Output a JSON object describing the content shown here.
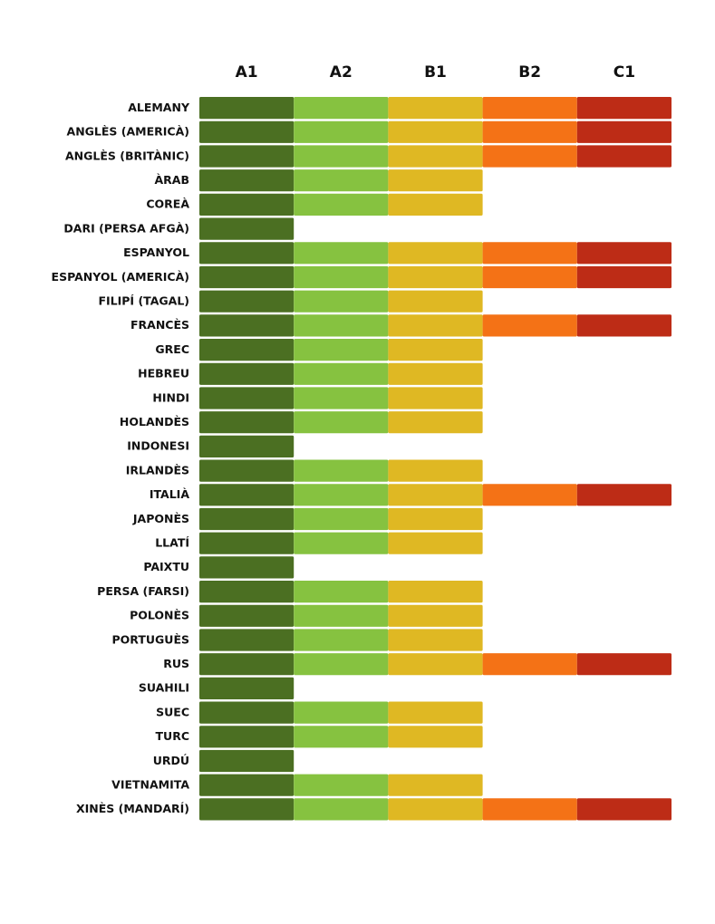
{
  "chart_data": {
    "type": "level-grid",
    "levels": [
      {
        "name": "A1",
        "color": "#4b6f22"
      },
      {
        "name": "A2",
        "color": "#86c240"
      },
      {
        "name": "B1",
        "color": "#dfb823"
      },
      {
        "name": "B2",
        "color": "#f47216"
      },
      {
        "name": "C1",
        "color": "#bd2c16"
      }
    ],
    "categories": [
      "ALEMANY",
      "ANGLÈS (AMERICÀ)",
      "ANGLÈS (BRITÀNIC)",
      "ÀRAB",
      "COREÀ",
      "DARI (PERSA AFGÀ)",
      "ESPANYOL",
      "ESPANYOL (AMERICÀ)",
      "FILIPÍ (TAGAL)",
      "FRANCÈS",
      "GREC",
      "HEBREU",
      "HINDI",
      "HOLANDÈS",
      "INDONESI",
      "IRLANDÈS",
      "ITALIÀ",
      "JAPONÈS",
      "LLATÍ",
      "PAIXTU",
      "PERSA (FARSI)",
      "POLONÈS",
      "PORTUGUÈS",
      "RUS",
      "SUAHILI",
      "SUEC",
      "TURC",
      "URDÚ",
      "VIETNAMITA",
      "XINÈS (MANDARÍ)"
    ],
    "values": [
      5,
      5,
      5,
      3,
      3,
      1,
      5,
      5,
      3,
      5,
      3,
      3,
      3,
      3,
      1,
      3,
      5,
      3,
      3,
      1,
      3,
      3,
      3,
      5,
      1,
      3,
      3,
      1,
      3,
      5
    ]
  }
}
